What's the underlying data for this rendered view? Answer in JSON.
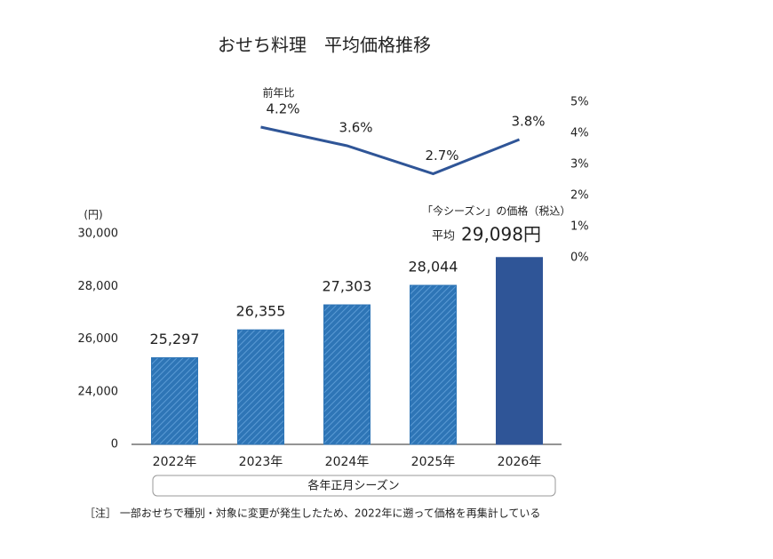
{
  "chart_data": {
    "type": "bar",
    "title": "おせち料理　平均価格推移",
    "x_label": "各年正月シーズン",
    "y_label": "(円)",
    "categories": [
      "2022年",
      "2023年",
      "2024年",
      "2025年",
      "2026年"
    ],
    "values": [
      25297,
      26355,
      27303,
      28044,
      29098
    ],
    "value_labels": [
      "25,297",
      "26,355",
      "27,303",
      "28,044",
      "29,098円"
    ],
    "colors": [
      "#2e75b6",
      "#2e75b6",
      "#2e75b6",
      "#2e75b6",
      "#2f5597"
    ],
    "hatched": [
      true,
      true,
      true,
      true,
      false
    ],
    "ylim": [
      0,
      30000
    ],
    "y_break": [
      0,
      24000
    ],
    "yticks": [
      0,
      {
        "value": 24000,
        "label": "24,000"
      },
      {
        "value": 26000,
        "label": "26,000"
      },
      {
        "value": 28000,
        "label": "28,000"
      },
      {
        "value": 30000,
        "label": "30,000"
      }
    ],
    "line": {
      "type": "line",
      "name": "前年比",
      "color": "#2f5597",
      "axis": "y2",
      "values": [
        null,
        4.2,
        3.6,
        2.7,
        3.8
      ],
      "value_labels": [
        null,
        "4.2%",
        "3.6%",
        "2.7%",
        "3.8%"
      ]
    },
    "y2lim": [
      0,
      5
    ],
    "y2ticks": [
      {
        "value": 0,
        "label": "0%"
      },
      {
        "value": 1,
        "label": "1%"
      },
      {
        "value": 2,
        "label": "2%"
      },
      {
        "value": 3,
        "label": "3%"
      },
      {
        "value": 4,
        "label": "4%"
      },
      {
        "value": 5,
        "label": "5%"
      }
    ],
    "annotations": [
      "「今シーズン」の価格（税込）",
      "平均"
    ],
    "footnote": "［注］ 一部おせちで種別・対象に変更が発生したため、2022年に遡って価格を再集計している"
  }
}
